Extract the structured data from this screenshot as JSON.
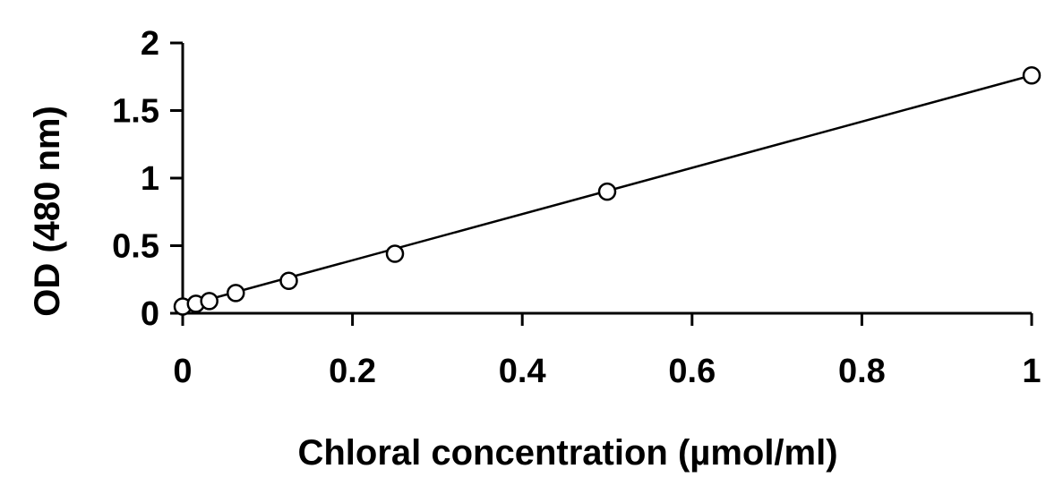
{
  "chart_data": {
    "type": "scatter",
    "title": "",
    "xlabel": "Chloral concentration (µmol/ml)",
    "ylabel": "OD (480 nm)",
    "xlim": [
      0,
      1
    ],
    "ylim": [
      0,
      2
    ],
    "x_ticks": [
      0,
      0.2,
      0.4,
      0.6,
      0.8,
      1
    ],
    "x_tick_labels": [
      "0",
      "0.2",
      "0.4",
      "0.6",
      "0.8",
      "1"
    ],
    "y_ticks": [
      0,
      0.5,
      1,
      1.5,
      2
    ],
    "y_tick_labels": [
      "0",
      "0.5",
      "1",
      "1.5",
      "2"
    ],
    "grid": false,
    "legend": "none",
    "marker": "open-circle",
    "color": "#000000",
    "series": [
      {
        "x": [
          0,
          0.0156,
          0.0313,
          0.0625,
          0.125,
          0.25,
          0.5,
          1
        ],
        "y": [
          0.05,
          0.07,
          0.09,
          0.15,
          0.24,
          0.44,
          0.9,
          1.76
        ]
      }
    ],
    "trendline": {
      "type": "linear",
      "x": [
        0,
        1
      ],
      "y": [
        0.05,
        1.76
      ]
    }
  }
}
